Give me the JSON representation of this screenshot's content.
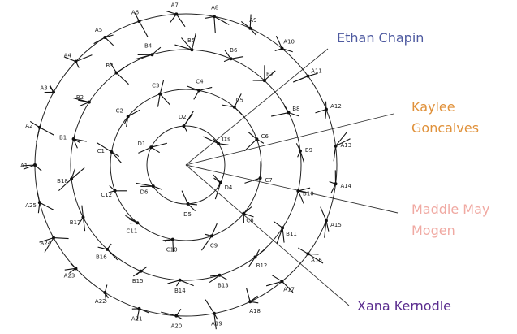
{
  "rings": {
    "A": [
      "A1",
      "A2",
      "A3",
      "A4",
      "A5",
      "A6",
      "A7",
      "A8",
      "A9",
      "A10",
      "A11",
      "A12",
      "A13",
      "A14",
      "A15",
      "A16",
      "A17",
      "A18",
      "A19",
      "A20",
      "A21",
      "A22",
      "A23",
      "A24",
      "A25"
    ],
    "B": [
      "B1",
      "B2",
      "B3",
      "B4",
      "B5",
      "B6",
      "B7",
      "B8",
      "B9",
      "B10",
      "B11",
      "B12",
      "B13",
      "B14",
      "B15",
      "B16",
      "B17",
      "B18"
    ],
    "C": [
      "C1",
      "C2",
      "C3",
      "C4",
      "C5",
      "C6",
      "C7",
      "C8",
      "C9",
      "C10",
      "C11",
      "C12"
    ],
    "D": [
      "D1",
      "D2",
      "D3",
      "D4",
      "D5",
      "D6"
    ]
  },
  "people": [
    {
      "name": "Ethan Chapin",
      "lines": [
        "Ethan Chapin"
      ],
      "color": "#4e5aa0"
    },
    {
      "name": "Kaylee Goncalves",
      "lines": [
        "Kaylee",
        "Goncalves"
      ],
      "color": "#e0913a"
    },
    {
      "name": "Maddie May Mogen",
      "lines": [
        "Maddie May",
        "Mogen"
      ],
      "color": "#f0a9a2"
    },
    {
      "name": "Xana Kernodle",
      "lines": [
        "Xana Kernodle"
      ],
      "color": "#5a2c8e"
    }
  ]
}
